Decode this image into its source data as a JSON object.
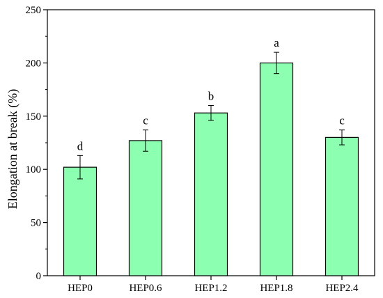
{
  "chart_data": {
    "type": "bar",
    "title": "",
    "xlabel": "",
    "ylabel": "Elongation at break (%)",
    "ylim": [
      0,
      250
    ],
    "yticks": [
      0,
      50,
      100,
      150,
      200,
      250
    ],
    "grid": false,
    "legend": "none",
    "categories": [
      "HEP0",
      "HEP0.6",
      "HEP1.2",
      "HEP1.8",
      "HEP2.4"
    ],
    "values": [
      102,
      127,
      153,
      200,
      130
    ],
    "errors": [
      11,
      10,
      7,
      10,
      7
    ],
    "significance": [
      "d",
      "c",
      "b",
      "a",
      "c"
    ],
    "colors": {
      "bar_fill": "#8CFFB0",
      "bar_stroke": "#000000",
      "axis": "#000000"
    }
  }
}
